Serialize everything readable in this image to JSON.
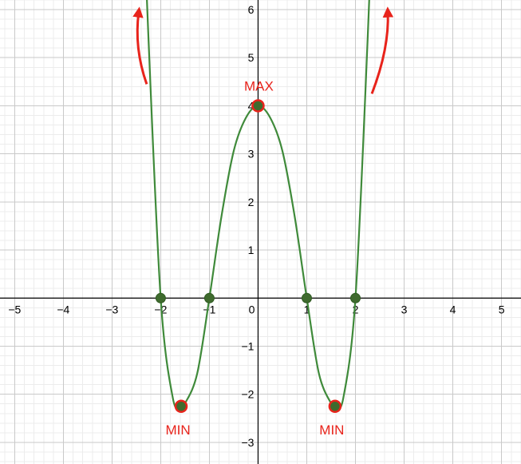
{
  "chart_data": {
    "type": "line",
    "title": "",
    "xlabel": "",
    "ylabel": "",
    "xlim": [
      -5.3,
      5.4
    ],
    "ylim": [
      -3.45,
      6.2
    ],
    "grid": true,
    "x_ticks": [
      -5,
      -4,
      -3,
      -2,
      -1,
      0,
      1,
      2,
      3,
      4,
      5
    ],
    "y_ticks": [
      -3,
      -2,
      -1,
      1,
      2,
      3,
      4,
      5,
      6
    ],
    "x_tick_labels": [
      "−5",
      "−4",
      "−3",
      "−2",
      "−1",
      "0",
      "1",
      "2",
      "3",
      "4",
      "5"
    ],
    "y_tick_labels": [
      "−3",
      "−2",
      "−1",
      "1",
      "2",
      "3",
      "4",
      "5",
      "6"
    ],
    "series": [
      {
        "x": [
          -2.5,
          -2.25,
          -2,
          -1.75,
          -1.58,
          -1.5,
          -1.25,
          -1,
          -0.75,
          -0.5,
          -0.25,
          0,
          0.25,
          0.5,
          0.75,
          1,
          1.25,
          1.5,
          1.58,
          1.75,
          2,
          2.25,
          2.5
        ],
        "y": [
          11.81,
          5.38,
          0,
          -2.08,
          -2.25,
          -2.19,
          -1.57,
          0,
          1.71,
          3.06,
          3.75,
          4,
          3.75,
          3.06,
          1.71,
          0,
          -1.57,
          -2.19,
          -2.25,
          -2.08,
          0,
          5.38,
          11.81
        ]
      }
    ],
    "points": [
      {
        "x": -2,
        "y": 0,
        "kind": "root"
      },
      {
        "x": -1,
        "y": 0,
        "kind": "root"
      },
      {
        "x": 1,
        "y": 0,
        "kind": "root"
      },
      {
        "x": 2,
        "y": 0,
        "kind": "root"
      },
      {
        "x": 0,
        "y": 4,
        "kind": "extremum",
        "label": "MAX"
      },
      {
        "x": -1.58,
        "y": -2.25,
        "kind": "extremum",
        "label": "MIN"
      },
      {
        "x": 1.58,
        "y": -2.25,
        "kind": "extremum",
        "label": "MIN"
      }
    ],
    "arrows": [
      {
        "side": "left",
        "direction": "up"
      },
      {
        "side": "right",
        "direction": "up"
      }
    ],
    "colors": {
      "curve": "#3f8a3a",
      "root_fill": "#3f6b2e",
      "extremum_fill": "#3f6b2e",
      "extremum_stroke": "#e8231b",
      "label": "#e8231b",
      "arrow": "#e8231b",
      "axis": "#000000",
      "grid_major": "#c9c9c9",
      "grid_minor": "#ececec"
    }
  }
}
